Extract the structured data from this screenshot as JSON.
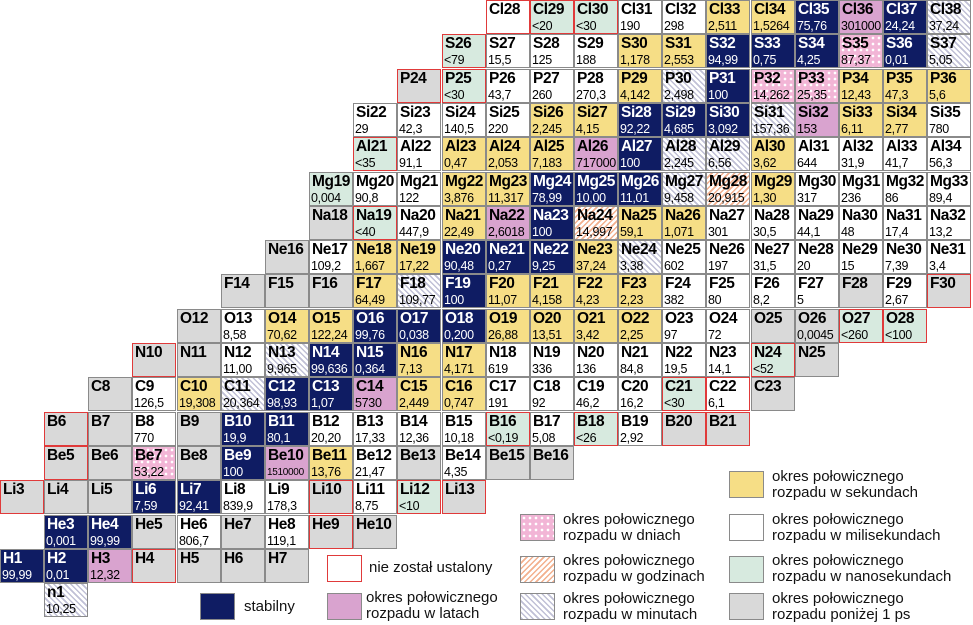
{
  "colors": {
    "stable": "#0f1c63",
    "years": "#d9a3cf",
    "days": "#f2b5d6",
    "hours": "#f3b08e",
    "minutes": "#c0c0d6",
    "seconds": "#f6de86",
    "milliseconds": "#ffffff",
    "nanoseconds": "#d7eadf",
    "below_1ps": "#d9d9d9",
    "unknown_border": "#e03a3a"
  },
  "rows": [
    {
      "symbol": "Cl",
      "cells": [
        [
          28,
          "",
          "u",
          1
        ],
        [
          29,
          "<20",
          "ns",
          1
        ],
        [
          30,
          "<30",
          "ns",
          1
        ],
        [
          31,
          "190",
          "ms"
        ],
        [
          32,
          "298",
          "ms"
        ],
        [
          33,
          "2,511",
          "s"
        ],
        [
          34,
          "1,5264",
          "s"
        ],
        [
          35,
          "75,76",
          "st"
        ],
        [
          36,
          "301000",
          "y"
        ],
        [
          37,
          "24,24",
          "st"
        ],
        [
          38,
          "37,24",
          "m"
        ]
      ]
    },
    {
      "symbol": "S",
      "cells": [
        [
          26,
          "<79",
          "ns",
          1
        ],
        [
          27,
          "15,5",
          "ms"
        ],
        [
          28,
          "125",
          "ms"
        ],
        [
          29,
          "188",
          "ms"
        ],
        [
          30,
          "1,178",
          "s"
        ],
        [
          31,
          "2,553",
          "s"
        ],
        [
          32,
          "94,99",
          "st"
        ],
        [
          33,
          "0,75",
          "st"
        ],
        [
          34,
          "4,25",
          "st"
        ],
        [
          35,
          "87,37",
          "d"
        ],
        [
          36,
          "0,01",
          "st"
        ],
        [
          37,
          "5,05",
          "m"
        ]
      ]
    },
    {
      "symbol": "P",
      "cells": [
        [
          24,
          "",
          "ps",
          1
        ],
        [
          25,
          "<30",
          "ns",
          1
        ],
        [
          26,
          "43,7",
          "ms"
        ],
        [
          27,
          "260",
          "ms"
        ],
        [
          28,
          "270,3",
          "ms"
        ],
        [
          29,
          "4,142",
          "s"
        ],
        [
          30,
          "2,498",
          "m"
        ],
        [
          31,
          "100",
          "st"
        ],
        [
          32,
          "14,262",
          "d"
        ],
        [
          33,
          "25,35",
          "d"
        ],
        [
          34,
          "12,43",
          "s"
        ],
        [
          35,
          "47,3",
          "s"
        ],
        [
          36,
          "5,6",
          "s"
        ]
      ]
    },
    {
      "symbol": "Si",
      "cells": [
        [
          22,
          "29",
          "ms"
        ],
        [
          23,
          "42,3",
          "ms"
        ],
        [
          24,
          "140,5",
          "ms"
        ],
        [
          25,
          "220",
          "ms"
        ],
        [
          26,
          "2,245",
          "s"
        ],
        [
          27,
          "4,15",
          "s"
        ],
        [
          28,
          "92,22",
          "st"
        ],
        [
          29,
          "4,685",
          "st"
        ],
        [
          30,
          "3,092",
          "st"
        ],
        [
          31,
          "157,36",
          "m"
        ],
        [
          32,
          "153",
          "y"
        ],
        [
          33,
          "6,11",
          "s"
        ],
        [
          34,
          "2,77",
          "s"
        ],
        [
          35,
          "780",
          "ms"
        ]
      ]
    },
    {
      "symbol": "Al",
      "cells": [
        [
          21,
          "<35",
          "ns",
          1
        ],
        [
          22,
          "91,1",
          "ms"
        ],
        [
          23,
          "0,47",
          "s"
        ],
        [
          24,
          "2,053",
          "s"
        ],
        [
          25,
          "7,183",
          "s"
        ],
        [
          26,
          "717000",
          "y"
        ],
        [
          27,
          "100",
          "st"
        ],
        [
          28,
          "2,245",
          "m"
        ],
        [
          29,
          "6,56",
          "m"
        ],
        [
          30,
          "3,62",
          "s"
        ],
        [
          31,
          "644",
          "ms"
        ],
        [
          32,
          "31,9",
          "ms"
        ],
        [
          33,
          "41,7",
          "ms"
        ],
        [
          34,
          "56,3",
          "ms"
        ]
      ]
    },
    {
      "symbol": "Mg",
      "cells": [
        [
          19,
          "0,004",
          "ns"
        ],
        [
          20,
          "90,8",
          "ms"
        ],
        [
          21,
          "122",
          "ms"
        ],
        [
          22,
          "3,876",
          "s"
        ],
        [
          23,
          "11,317",
          "s"
        ],
        [
          24,
          "78,99",
          "st"
        ],
        [
          25,
          "10,00",
          "st"
        ],
        [
          26,
          "11,01",
          "st"
        ],
        [
          27,
          "9,458",
          "m"
        ],
        [
          28,
          "20,915",
          "h"
        ],
        [
          29,
          "1,30",
          "s"
        ],
        [
          30,
          "317",
          "ms"
        ],
        [
          31,
          "236",
          "ms"
        ],
        [
          32,
          "86",
          "ms"
        ],
        [
          33,
          "89,4",
          "ms"
        ]
      ]
    },
    {
      "symbol": "Na",
      "cells": [
        [
          18,
          "",
          "ps"
        ],
        [
          19,
          "<40",
          "ns",
          1
        ],
        [
          20,
          "447,9",
          "ms"
        ],
        [
          21,
          "22,49",
          "s"
        ],
        [
          22,
          "2,6018",
          "y"
        ],
        [
          23,
          "100",
          "st"
        ],
        [
          24,
          "14,997",
          "h"
        ],
        [
          25,
          "59,1",
          "s"
        ],
        [
          26,
          "1,071",
          "s"
        ],
        [
          27,
          "301",
          "ms"
        ],
        [
          28,
          "30,5",
          "ms"
        ],
        [
          29,
          "44,1",
          "ms"
        ],
        [
          30,
          "48",
          "ms"
        ],
        [
          31,
          "17,4",
          "ms"
        ],
        [
          32,
          "13,2",
          "ms"
        ]
      ]
    },
    {
      "symbol": "Ne",
      "cells": [
        [
          16,
          "",
          "ps"
        ],
        [
          17,
          "109,2",
          "ms"
        ],
        [
          18,
          "1,667",
          "s"
        ],
        [
          19,
          "17,22",
          "s"
        ],
        [
          20,
          "90,48",
          "st"
        ],
        [
          21,
          "0,27",
          "st"
        ],
        [
          22,
          "9,25",
          "st"
        ],
        [
          23,
          "37,24",
          "s"
        ],
        [
          24,
          "3,38",
          "m"
        ],
        [
          25,
          "602",
          "ms"
        ],
        [
          26,
          "197",
          "ms"
        ],
        [
          27,
          "31,5",
          "ms"
        ],
        [
          28,
          "20",
          "ms"
        ],
        [
          29,
          "15",
          "ms"
        ],
        [
          30,
          "7,39",
          "ms"
        ],
        [
          31,
          "3,4",
          "ms"
        ]
      ]
    },
    {
      "symbol": "F",
      "cells": [
        [
          14,
          "",
          "ps"
        ],
        [
          15,
          "",
          "ps"
        ],
        [
          16,
          "",
          "ps"
        ],
        [
          17,
          "64,49",
          "s"
        ],
        [
          18,
          "109,77",
          "m"
        ],
        [
          19,
          "100",
          "st"
        ],
        [
          20,
          "11,07",
          "s"
        ],
        [
          21,
          "4,158",
          "s"
        ],
        [
          22,
          "4,23",
          "s"
        ],
        [
          23,
          "2,23",
          "s"
        ],
        [
          24,
          "382",
          "ms"
        ],
        [
          25,
          "80",
          "ms"
        ],
        [
          26,
          "8,2",
          "ms"
        ],
        [
          27,
          "5",
          "ms"
        ],
        [
          28,
          "",
          "ps"
        ],
        [
          29,
          "2,67",
          "ms"
        ],
        [
          30,
          "",
          "ps",
          1
        ]
      ]
    },
    {
      "symbol": "O",
      "cells": [
        [
          12,
          "",
          "ps"
        ],
        [
          13,
          "8,58",
          "ms"
        ],
        [
          14,
          "70,62",
          "s"
        ],
        [
          15,
          "122,24",
          "s"
        ],
        [
          16,
          "99,76",
          "st"
        ],
        [
          17,
          "0,038",
          "st"
        ],
        [
          18,
          "0,200",
          "st"
        ],
        [
          19,
          "26,88",
          "s"
        ],
        [
          20,
          "13,51",
          "s"
        ],
        [
          21,
          "3,42",
          "s"
        ],
        [
          22,
          "2,25",
          "s"
        ],
        [
          23,
          "97",
          "ms"
        ],
        [
          24,
          "72",
          "ms"
        ],
        [
          25,
          "",
          "ps"
        ],
        [
          26,
          "0,0045",
          "ps"
        ],
        [
          27,
          "<260",
          "ns",
          1
        ],
        [
          28,
          "<100",
          "ns",
          1
        ]
      ]
    },
    {
      "symbol": "N",
      "cells": [
        [
          10,
          "",
          "ps",
          1
        ],
        [
          11,
          "",
          "ps"
        ],
        [
          12,
          "11,00",
          "ms"
        ],
        [
          13,
          "9,965",
          "m"
        ],
        [
          14,
          "99,636",
          "st"
        ],
        [
          15,
          "0,364",
          "st"
        ],
        [
          16,
          "7,13",
          "s"
        ],
        [
          17,
          "4,171",
          "s"
        ],
        [
          18,
          "619",
          "ms"
        ],
        [
          19,
          "336",
          "ms"
        ],
        [
          20,
          "136",
          "ms"
        ],
        [
          21,
          "84,8",
          "ms"
        ],
        [
          22,
          "19,5",
          "ms"
        ],
        [
          23,
          "14,1",
          "ms"
        ],
        [
          24,
          "<52",
          "ns",
          1
        ],
        [
          25,
          "",
          "ps"
        ]
      ]
    },
    {
      "symbol": "C",
      "cells": [
        [
          8,
          "",
          "ps"
        ],
        [
          9,
          "126,5",
          "ms"
        ],
        [
          10,
          "19,308",
          "s"
        ],
        [
          11,
          "20,364",
          "m"
        ],
        [
          12,
          "98,93",
          "st"
        ],
        [
          13,
          "1,07",
          "st"
        ],
        [
          14,
          "5730",
          "y"
        ],
        [
          15,
          "2,449",
          "s"
        ],
        [
          16,
          "0,747",
          "s"
        ],
        [
          17,
          "191",
          "ms"
        ],
        [
          18,
          "92",
          "ms"
        ],
        [
          19,
          "46,2",
          "ms"
        ],
        [
          20,
          "16,2",
          "ms"
        ],
        [
          21,
          "<30",
          "ns",
          1
        ],
        [
          22,
          "6,1",
          "ms",
          1
        ],
        [
          23,
          "",
          "ps"
        ]
      ]
    },
    {
      "symbol": "B",
      "cells": [
        [
          6,
          "",
          "ps",
          1
        ],
        [
          7,
          "",
          "ps"
        ],
        [
          8,
          "770",
          "ms"
        ],
        [
          9,
          "",
          "ps"
        ],
        [
          10,
          "19,9",
          "st"
        ],
        [
          11,
          "80,1",
          "st"
        ],
        [
          12,
          "20,20",
          "ms"
        ],
        [
          13,
          "17,33",
          "ms"
        ],
        [
          14,
          "12,36",
          "ms"
        ],
        [
          15,
          "10,18",
          "ms"
        ],
        [
          16,
          "<0,19",
          "ns",
          1
        ],
        [
          17,
          "5,08",
          "ms"
        ],
        [
          18,
          "<26",
          "ns",
          1
        ],
        [
          19,
          "2,92",
          "ms"
        ],
        [
          20,
          "",
          "ps",
          1
        ],
        [
          21,
          "",
          "ps",
          1
        ]
      ]
    },
    {
      "symbol": "Be",
      "cells": [
        [
          5,
          "",
          "ps",
          1
        ],
        [
          6,
          "",
          "ps"
        ],
        [
          7,
          "53,22",
          "d"
        ],
        [
          8,
          "",
          "ps"
        ],
        [
          9,
          "100",
          "st"
        ],
        [
          10,
          "1510000",
          "y"
        ],
        [
          11,
          "13,76",
          "s"
        ],
        [
          12,
          "21,47",
          "ms"
        ],
        [
          13,
          "",
          "ps"
        ],
        [
          14,
          "4,35",
          "ms"
        ],
        [
          15,
          "",
          "ps"
        ],
        [
          16,
          "",
          "ps"
        ]
      ]
    },
    {
      "symbol": "Li",
      "cells": [
        [
          3,
          "",
          "ps",
          1
        ],
        [
          4,
          "",
          "ps"
        ],
        [
          5,
          "",
          "ps"
        ],
        [
          6,
          "7,59",
          "st"
        ],
        [
          7,
          "92,41",
          "st"
        ],
        [
          8,
          "839,9",
          "ms"
        ],
        [
          9,
          "178,3",
          "ms"
        ],
        [
          10,
          "",
          "ps",
          1
        ],
        [
          11,
          "8,75",
          "ms"
        ],
        [
          12,
          "<10",
          "ns",
          1
        ],
        [
          13,
          "",
          "ps",
          1
        ]
      ]
    },
    {
      "symbol": "He",
      "cells": [
        [
          3,
          "0,001",
          "st"
        ],
        [
          4,
          "99,99",
          "st"
        ],
        [
          5,
          "",
          "ps"
        ],
        [
          6,
          "806,7",
          "ms"
        ],
        [
          7,
          "",
          "ps"
        ],
        [
          8,
          "119,1",
          "ms"
        ],
        [
          9,
          "",
          "ps",
          1
        ],
        [
          10,
          "",
          "ps"
        ]
      ]
    },
    {
      "symbol": "H",
      "cells": [
        [
          1,
          "99,99",
          "st"
        ],
        [
          2,
          "0,01",
          "st"
        ],
        [
          3,
          "12,32",
          "y"
        ],
        [
          4,
          "",
          "ps",
          1
        ],
        [
          5,
          "",
          "ps"
        ],
        [
          6,
          "",
          "ps"
        ],
        [
          7,
          "",
          "ps"
        ]
      ]
    },
    {
      "symbol": "n",
      "cells": [
        [
          1,
          "10,25",
          "m"
        ]
      ]
    }
  ],
  "legend": {
    "stable": "stabilny",
    "unknown": "nie został ustalony",
    "years": [
      "okres połowicznego",
      "rozpadu w latach"
    ],
    "days": [
      "okres połowicznego",
      "rozpadu w dniach"
    ],
    "hours": [
      "okres połowicznego",
      "rozpadu w godzinach"
    ],
    "minutes": [
      "okres połowicznego",
      "rozpadu w minutach"
    ],
    "seconds": [
      "okres połowicznego",
      "rozpadu w sekundach"
    ],
    "milliseconds": [
      "okres połowicznego",
      "rozpadu w milisekundach"
    ],
    "nanoseconds": [
      "okres połowicznego",
      "rozpadu w nanosekundach"
    ],
    "below_1ps": [
      "okres połowicznego",
      "rozpadu poniżej 1 ps"
    ]
  }
}
